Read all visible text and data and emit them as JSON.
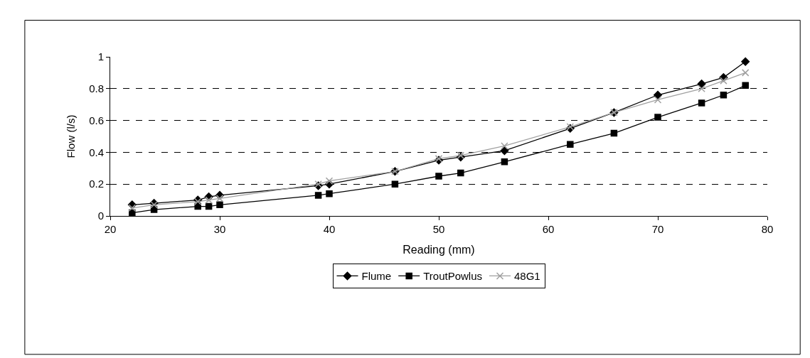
{
  "chart_data": {
    "type": "line",
    "xlabel": "Reading (mm)",
    "ylabel": "Flow (l/s)",
    "x": [
      22,
      24,
      28,
      29,
      30,
      39,
      40,
      46,
      50,
      52,
      56,
      62,
      66,
      70,
      74,
      76,
      78
    ],
    "series": [
      {
        "name": "Flume",
        "color": "#000000",
        "marker": "diamond",
        "values": [
          0.07,
          0.08,
          0.1,
          0.12,
          0.13,
          0.19,
          0.2,
          0.28,
          0.35,
          0.37,
          0.41,
          0.55,
          0.65,
          0.76,
          0.83,
          0.87,
          0.97
        ]
      },
      {
        "name": "TroutPowlus",
        "color": "#000000",
        "marker": "square",
        "values": [
          0.02,
          0.04,
          0.06,
          0.06,
          0.07,
          0.13,
          0.14,
          0.2,
          0.25,
          0.27,
          0.34,
          0.45,
          0.52,
          0.62,
          0.71,
          0.76,
          0.82
        ]
      },
      {
        "name": "48G1",
        "color": "#a0a0a0",
        "marker": "cross",
        "values": [
          0.05,
          0.07,
          0.09,
          0.1,
          0.11,
          0.2,
          0.22,
          0.28,
          0.36,
          0.38,
          0.44,
          0.56,
          0.65,
          0.73,
          0.8,
          0.85,
          0.9
        ]
      }
    ],
    "xlim": [
      20,
      80
    ],
    "xticks": [
      20,
      30,
      40,
      50,
      60,
      70,
      80
    ],
    "ylim": [
      0,
      1
    ],
    "yticks": [
      0,
      0.2,
      0.4,
      0.6,
      0.8,
      1
    ],
    "grid": "y",
    "legend": "bottom",
    "line_style": "solid"
  }
}
